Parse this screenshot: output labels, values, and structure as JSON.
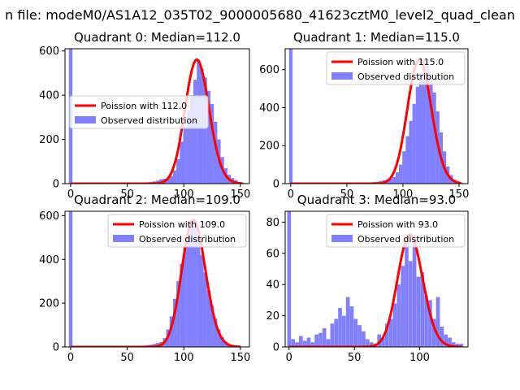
{
  "suptitle": "n file: modeM0/AS1A12_035T02_9000005680_41623cztM0_level2_quad_clean",
  "colors": {
    "hist": "#8080ff",
    "fit": "#ff0000",
    "fit_edge": "#ff9999",
    "axis": "#000000"
  },
  "chart_data": [
    {
      "type": "bar",
      "title": "Quadrant 0: Median=112.0",
      "xlim": [
        -5,
        158
      ],
      "ylim": [
        0,
        610
      ],
      "xticks": [
        0,
        50,
        100,
        150
      ],
      "yticks": [
        0,
        200,
        400,
        600
      ],
      "legend": {
        "position": "center-left",
        "fit_label": "Poission with 112.0",
        "hist_label": "Observed distribution"
      },
      "median": 112.0,
      "spike": {
        "x": 0,
        "value": 610
      },
      "bin_width": 3.1,
      "bins_x": [
        56,
        59,
        62,
        65,
        68,
        71,
        74,
        77,
        80,
        83,
        86,
        89,
        92,
        95,
        98,
        101,
        104,
        107,
        110,
        113,
        116,
        119,
        122,
        125,
        128,
        131,
        134,
        137,
        140,
        143,
        146,
        149,
        152
      ],
      "bins_y": [
        2,
        3,
        4,
        5,
        6,
        8,
        10,
        14,
        20,
        22,
        24,
        35,
        60,
        110,
        190,
        260,
        330,
        400,
        470,
        560,
        520,
        480,
        420,
        360,
        280,
        200,
        120,
        70,
        40,
        25,
        15,
        8,
        4
      ],
      "fit_x_range": [
        0,
        152
      ]
    },
    {
      "type": "bar",
      "title": "Quadrant 1: Median=115.0",
      "xlim": [
        -5,
        158
      ],
      "ylim": [
        0,
        710
      ],
      "xticks": [
        0,
        50,
        100,
        150
      ],
      "yticks": [
        0,
        200,
        400,
        600
      ],
      "legend": {
        "position": "top-right",
        "fit_label": "Poission with 115.0",
        "hist_label": "Observed distribution"
      },
      "median": 115.0,
      "spike": {
        "x": 0,
        "value": 710
      },
      "bin_width": 3.1,
      "bins_x": [
        56,
        59,
        62,
        65,
        68,
        71,
        74,
        77,
        80,
        83,
        86,
        89,
        92,
        95,
        98,
        101,
        104,
        107,
        110,
        113,
        116,
        119,
        122,
        125,
        128,
        131,
        134,
        137,
        140,
        143,
        146,
        149,
        152
      ],
      "bins_y": [
        2,
        2,
        3,
        4,
        5,
        6,
        8,
        10,
        14,
        18,
        22,
        25,
        35,
        60,
        100,
        170,
        250,
        330,
        420,
        510,
        580,
        650,
        620,
        560,
        480,
        380,
        270,
        170,
        90,
        45,
        20,
        10,
        4
      ],
      "fit_x_range": [
        0,
        152
      ]
    },
    {
      "type": "bar",
      "title": "Quadrant 2: Median=109.0",
      "xlim": [
        -5,
        158
      ],
      "ylim": [
        0,
        620
      ],
      "xticks": [
        0,
        50,
        100,
        150
      ],
      "yticks": [
        0,
        200,
        400,
        600
      ],
      "legend": {
        "position": "top-right",
        "fit_label": "Poission with 109.0",
        "hist_label": "Observed distribution"
      },
      "median": 109.0,
      "spike": {
        "x": 0,
        "value": 620
      },
      "bin_width": 3.1,
      "bins_x": [
        56,
        59,
        62,
        65,
        68,
        71,
        74,
        77,
        80,
        83,
        86,
        89,
        92,
        95,
        98,
        101,
        104,
        107,
        110,
        113,
        116,
        119,
        122,
        125,
        128,
        131,
        134,
        137,
        140,
        143,
        146,
        149
      ],
      "bins_y": [
        3,
        4,
        5,
        6,
        8,
        10,
        14,
        18,
        22,
        40,
        80,
        140,
        220,
        300,
        380,
        460,
        520,
        580,
        560,
        500,
        420,
        340,
        260,
        190,
        130,
        80,
        45,
        25,
        12,
        6,
        3,
        2
      ],
      "fit_x_range": [
        0,
        150
      ]
    },
    {
      "type": "bar",
      "title": "Quadrant 3: Median=93.0",
      "xlim": [
        -3,
        137
      ],
      "ylim": [
        0,
        87
      ],
      "xticks": [
        0,
        50,
        100
      ],
      "yticks": [
        0,
        20,
        40,
        60,
        80
      ],
      "legend": {
        "position": "top-right",
        "fit_label": "Poission with 93.0",
        "hist_label": "Observed distribution"
      },
      "median": 93.0,
      "spike": {
        "x": 0,
        "value": 87
      },
      "bin_width": 2.9,
      "bins_x": [
        3,
        6,
        9,
        12,
        15,
        18,
        21,
        24,
        27,
        30,
        33,
        36,
        39,
        42,
        45,
        48,
        51,
        54,
        57,
        60,
        63,
        66,
        69,
        72,
        75,
        78,
        81,
        84,
        87,
        90,
        93,
        96,
        99,
        102,
        105,
        108,
        111,
        114,
        117,
        120,
        123,
        126,
        129,
        132
      ],
      "bins_y": [
        5,
        3,
        7,
        4,
        6,
        3,
        8,
        9,
        12,
        5,
        15,
        18,
        25,
        20,
        32,
        26,
        18,
        14,
        10,
        5,
        3,
        2,
        8,
        6,
        15,
        18,
        28,
        40,
        52,
        68,
        55,
        72,
        45,
        48,
        33,
        30,
        18,
        32,
        13,
        8,
        6,
        3,
        2,
        2
      ],
      "fit_x_range": [
        0,
        132
      ]
    }
  ]
}
